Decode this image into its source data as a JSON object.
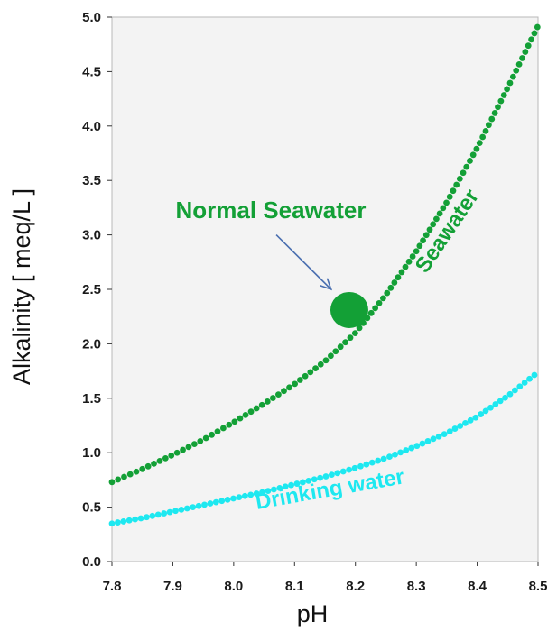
{
  "chart_data": {
    "type": "scatter",
    "title": "",
    "xlabel": "pH",
    "ylabel": "Alkalinity [ meq/L ]",
    "xlim": [
      7.8,
      8.5
    ],
    "ylim": [
      0.0,
      5.0
    ],
    "x_ticks": [
      "7.8",
      "7.9",
      "8.0",
      "8.1",
      "8.2",
      "8.3",
      "8.4",
      "8.5"
    ],
    "y_ticks": [
      "0.0",
      "0.5",
      "1.0",
      "1.5",
      "2.0",
      "2.5",
      "3.0",
      "3.5",
      "4.0",
      "4.5",
      "5.0"
    ],
    "grid": false,
    "legend": "none",
    "series": [
      {
        "name": "Seawater",
        "color": "#13a036",
        "marker": "dotted-line",
        "x": [
          7.8,
          7.85,
          7.9,
          7.95,
          8.0,
          8.05,
          8.1,
          8.15,
          8.2,
          8.25,
          8.3,
          8.35,
          8.4,
          8.45,
          8.5
        ],
        "y": [
          0.73,
          0.85,
          0.98,
          1.12,
          1.28,
          1.45,
          1.63,
          1.84,
          2.1,
          2.45,
          2.85,
          3.3,
          3.8,
          4.35,
          4.92
        ]
      },
      {
        "name": "Drinking water",
        "color": "#1ee8f0",
        "marker": "dotted-line",
        "x": [
          7.8,
          7.85,
          7.9,
          7.95,
          8.0,
          8.05,
          8.1,
          8.15,
          8.2,
          8.25,
          8.3,
          8.35,
          8.4,
          8.45,
          8.5
        ],
        "y": [
          0.35,
          0.4,
          0.46,
          0.52,
          0.58,
          0.64,
          0.71,
          0.78,
          0.86,
          0.95,
          1.06,
          1.18,
          1.33,
          1.52,
          1.74
        ]
      }
    ],
    "annotations": [
      {
        "text": "Normal Seawater",
        "color": "#13a036",
        "marker_x": 8.19,
        "marker_y": 2.31,
        "arrow_from_x": 8.07,
        "arrow_from_y": 3.0,
        "arrow_to_x": 8.16,
        "arrow_to_y": 2.5,
        "arrow_color": "#4a6fb0"
      }
    ],
    "series_labels": [
      {
        "text": "Seawater",
        "color": "#13a036",
        "x": 8.36,
        "y": 3.0,
        "rotation": -56
      },
      {
        "text": "Drinking water",
        "color": "#1ee8f0",
        "x": 8.16,
        "y": 0.6,
        "rotation": -10
      }
    ],
    "plot_background": "#f3f3f3"
  }
}
